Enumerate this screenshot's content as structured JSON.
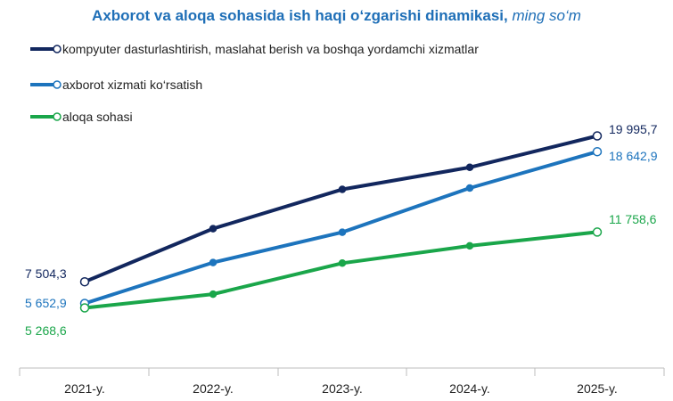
{
  "chart_data": {
    "type": "line",
    "title": "Axborot va aloqa sohasida ish haqi o‘zgarishi dinamikasi,",
    "title_unit": "ming so‘m",
    "categories": [
      "2021-y.",
      "2022-y.",
      "2023-y.",
      "2024-y.",
      "2025-y."
    ],
    "series": [
      {
        "name": "kompyuter dasturlashtirish, maslahat berish va boshqa yordamchi xizmatlar",
        "color": "#12275e",
        "values": [
          7504.3,
          12050,
          15420,
          17300,
          19995.7
        ],
        "labels": {
          "first": "7 504,3",
          "last": "19 995,7"
        }
      },
      {
        "name": "axborot xizmati ko‘rsatish",
        "color": "#1d74bd",
        "values": [
          5652.9,
          9150,
          11750,
          15530,
          18642.9
        ],
        "labels": {
          "first": "5 652,9",
          "last": "18 642,9"
        }
      },
      {
        "name": "aloqa sohasi",
        "color": "#1aa64a",
        "values": [
          5268.6,
          6440,
          9100,
          10580,
          11758.6
        ],
        "labels": {
          "first": "5 268,6",
          "last": "11 758,6"
        }
      }
    ],
    "legend_position": "top-left",
    "grid": false
  }
}
